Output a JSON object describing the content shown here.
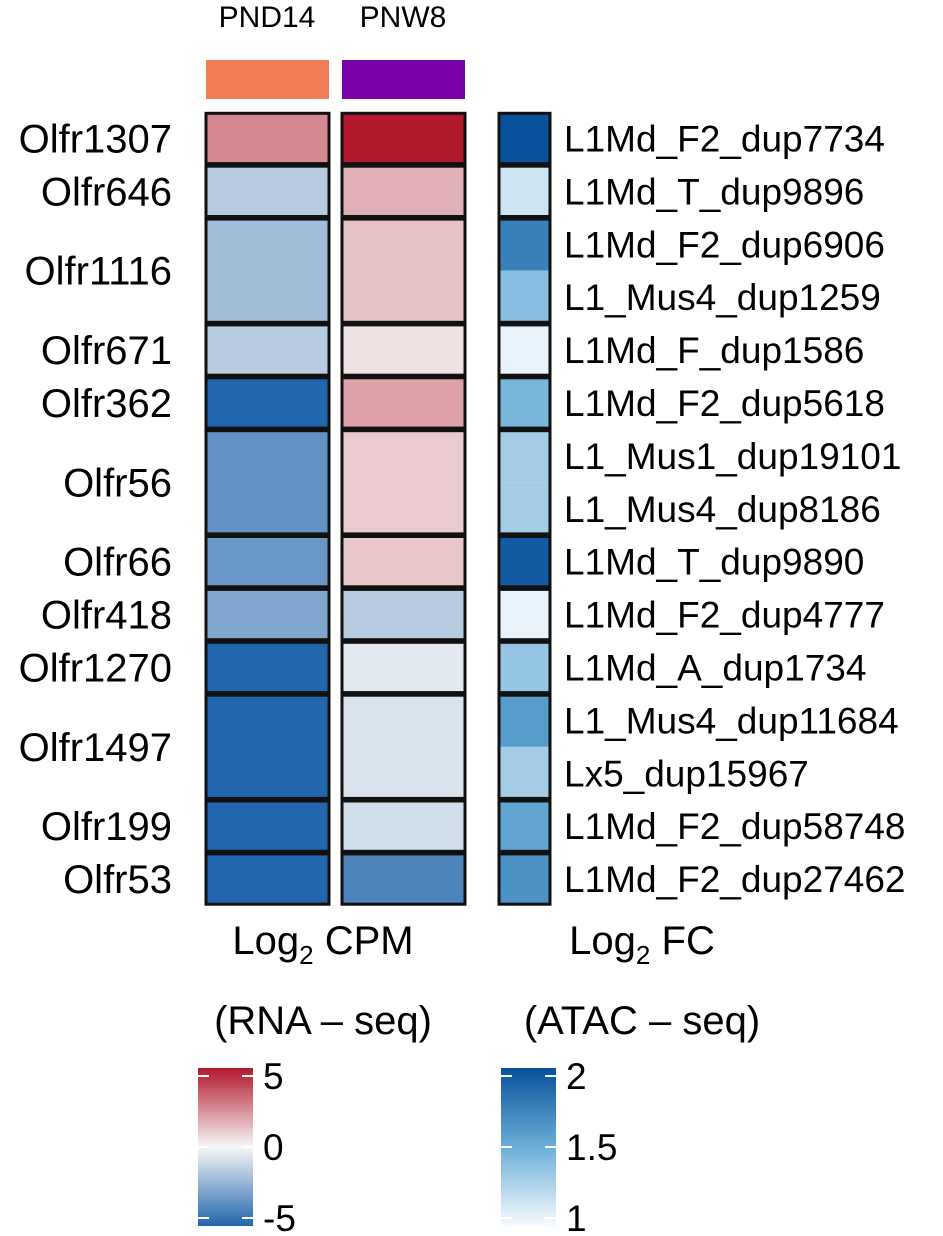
{
  "chart_data": {
    "type": "heatmap",
    "title": "",
    "columns": [
      "PND14",
      "PNW8"
    ],
    "column_colors": [
      "#f07d53",
      "#7a00a8"
    ],
    "genes": [
      "Olfr1307",
      "Olfr646",
      "Olfr1116",
      "Olfr671",
      "Olfr362",
      "Olfr56",
      "Olfr66",
      "Olfr418",
      "Olfr1270",
      "Olfr1497",
      "Olfr199",
      "Olfr53"
    ],
    "rna_log2_cpm": [
      [
        2.5,
        5.0
      ],
      [
        -1.5,
        1.6
      ],
      [
        -2.0,
        1.2
      ],
      [
        -1.5,
        0.5
      ],
      [
        -5.0,
        1.9
      ],
      [
        -3.5,
        1.0
      ],
      [
        -3.3,
        1.1
      ],
      [
        -2.8,
        -1.5
      ],
      [
        -5.0,
        -0.5
      ],
      [
        -5.0,
        -0.7
      ],
      [
        -5.0,
        -0.9
      ],
      [
        -5.0,
        -4.0
      ]
    ],
    "elements_by_gene": [
      [
        "L1Md_F2_dup7734"
      ],
      [
        "L1Md_T_dup9896"
      ],
      [
        "L1Md_F2_dup6906",
        "L1_Mus4_dup1259"
      ],
      [
        "L1Md_F_dup1586"
      ],
      [
        "L1Md_F2_dup5618"
      ],
      [
        "L1_Mus1_dup19101",
        "L1_Mus4_dup8186"
      ],
      [
        "L1Md_T_dup9890"
      ],
      [
        "L1Md_F2_dup4777"
      ],
      [
        "L1Md_A_dup1734"
      ],
      [
        "L1_Mus4_dup11684",
        "Lx5_dup15967"
      ],
      [
        "L1Md_F2_dup58748"
      ],
      [
        "L1Md_F2_dup27462"
      ]
    ],
    "atac_log2_fc": [
      [
        2.0
      ],
      [
        1.15
      ],
      [
        1.75,
        1.4
      ],
      [
        1.05
      ],
      [
        1.45
      ],
      [
        1.3,
        1.3
      ],
      [
        1.95
      ],
      [
        1.05
      ],
      [
        1.35
      ],
      [
        1.6,
        1.3
      ],
      [
        1.55
      ],
      [
        1.65
      ]
    ],
    "rna_xlabel_base": "Log",
    "rna_xlabel_sub": "2",
    "rna_xlabel_rest": " CPM",
    "atac_xlabel_base": "Log",
    "atac_xlabel_sub": "2",
    "atac_xlabel_rest": " FC",
    "rna_legend_title": "(RNA – seq)",
    "atac_legend_title": "(ATAC – seq)",
    "rna_scale": {
      "min": -5,
      "max": 5,
      "ticks": [
        5,
        0,
        -5
      ],
      "tick_labels": [
        "5",
        "0",
        "-5"
      ],
      "colors": {
        "low": "#2166ac",
        "mid": "#f7f7f7",
        "high": "#b2182b"
      }
    },
    "atac_scale": {
      "min": 1,
      "max": 2,
      "ticks": [
        2,
        1.5,
        1
      ],
      "tick_labels": [
        "2",
        "1.5",
        "1"
      ],
      "colors": {
        "low": "#f7fbff",
        "high": "#08519c"
      }
    },
    "legend_placement": "bottom"
  }
}
